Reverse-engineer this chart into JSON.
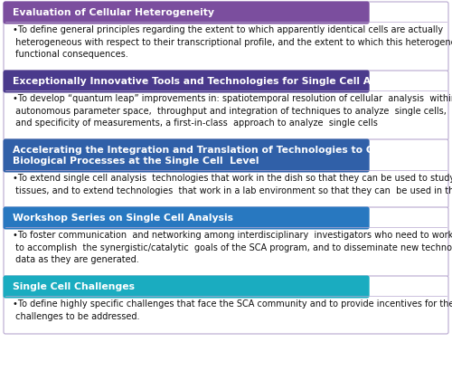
{
  "sections": [
    {
      "title": "Evaluation of Cellular Heterogeneity",
      "title_color": "#7B4E9E",
      "title_lines": 1,
      "body": "•To define general principles regarding the extent to which apparently identical cells are actually\n heterogeneous with respect to their transcriptional profile, and the extent to which this heterogeneity has\n functional consequences.",
      "body_lines": 3
    },
    {
      "title": "Exceptionally Innovative Tools and Technologies for Single Cell Analysis",
      "title_color": "#4A3A8C",
      "title_lines": 1,
      "body": "•To develop “quantum leap” improvements in: spatiotemporal resolution of cellular  analysis  within tissues,\n autonomous parameter space,  throughput and integration of techniques to analyze  single cells,  sensitivity\n and specificity of measurements, a first-in-class  approach to analyze  single cells",
      "body_lines": 3
    },
    {
      "title": "Accelerating the Integration and Translation of Technologies to Characterize\nBiological Processes at the Single Cell  Level",
      "title_color": "#3060A8",
      "title_lines": 2,
      "body": "•To extend single cell analysis  technologies that work in the dish so that they can be used to study cells in\n tissues, and to extend technologies  that work in a lab environment so that they can  be used in the clinic.",
      "body_lines": 2
    },
    {
      "title": "Workshop Series on Single Cell Analysis",
      "title_color": "#2878C0",
      "title_lines": 1,
      "body": "•To foster communication  and networking among interdisciplinary  investigators who need to work together\n to accomplish  the synergistic/catalytic  goals of the SCA program, and to disseminate new technologies and\n data as they are generated.",
      "body_lines": 3
    },
    {
      "title": "Single Cell Challenges",
      "title_color": "#1AACC0",
      "title_lines": 1,
      "body": "•To define highly specific challenges that face the SCA community and to provide incentives for these\n challenges to be addressed.",
      "body_lines": 2
    }
  ],
  "background_color": "#FFFFFF",
  "outer_border_color": "#B8A8D0",
  "title_text_color": "#FFFFFF",
  "body_text_color": "#111111",
  "title_font_size": 7.8,
  "body_font_size": 7.0,
  "fig_width": 5.0,
  "fig_height": 4.2,
  "dpi": 100
}
